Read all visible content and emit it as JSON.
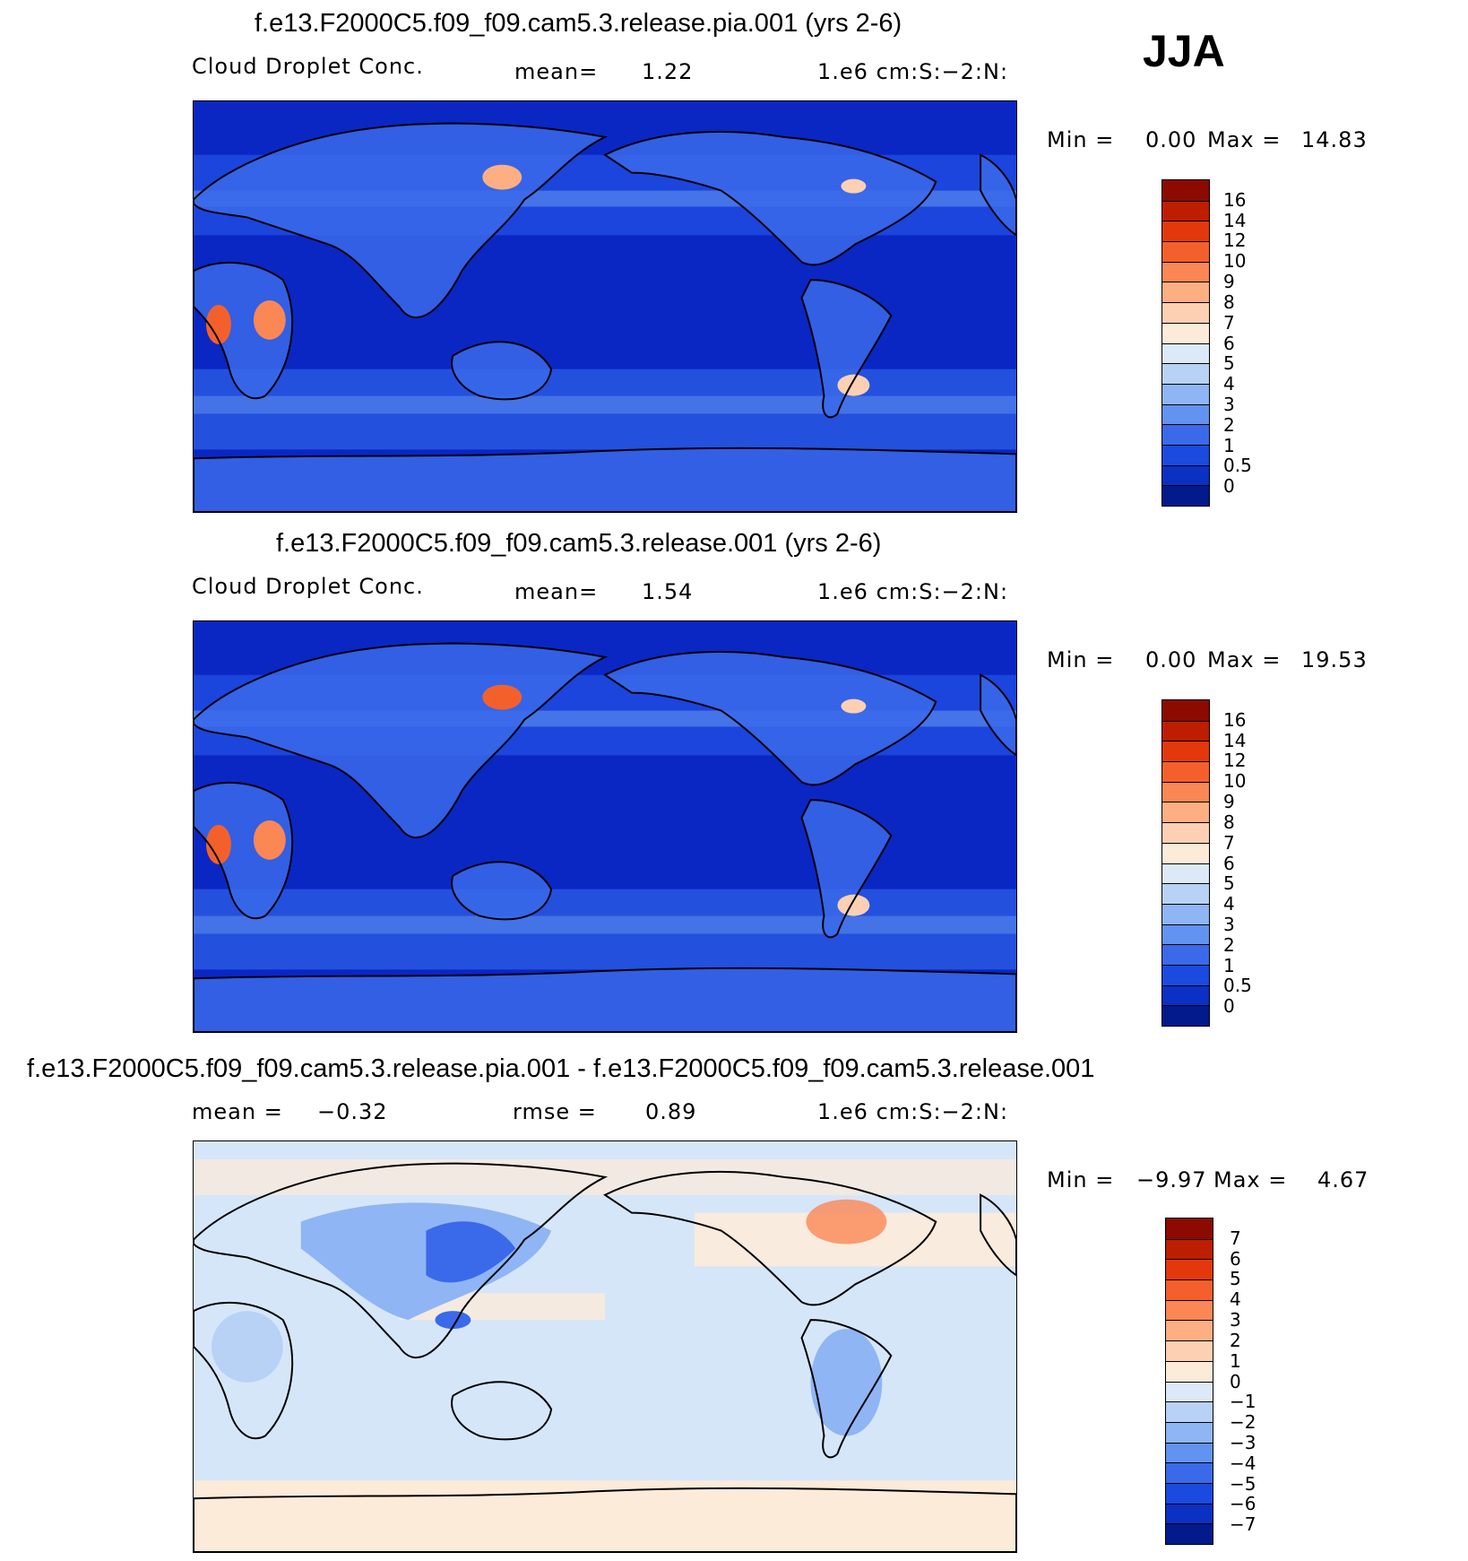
{
  "season": "JJA",
  "panels": [
    {
      "title": "f.e13.F2000C5.f09_f09.cam5.3.release.pia.001 (yrs 2-6)",
      "variable": "Cloud Droplet Conc.",
      "stat_label": "mean=",
      "stat_value": "1.22",
      "units": "1.e6 cm:S:−2:N:",
      "min_label": "Min =",
      "min_value": "0.00",
      "max_label": "Max =",
      "max_value": "14.83",
      "levels": [
        "16",
        "14",
        "12",
        "10",
        "9",
        "8",
        "7",
        "6",
        "5",
        "4",
        "3",
        "2",
        "1",
        "0.5",
        "0"
      ],
      "colors": [
        "#8c0a00",
        "#bd1e00",
        "#e3380b",
        "#f4602b",
        "#fb8755",
        "#fdaf83",
        "#fdd0b3",
        "#fdebd9",
        "#dce9f8",
        "#b8d2f6",
        "#8fb5f5",
        "#6393f0",
        "#3a6aea",
        "#1a4ae0",
        "#0a30c4",
        "#021a8c"
      ],
      "bg_color": "#0a27c4"
    },
    {
      "title": "f.e13.F2000C5.f09_f09.cam5.3.release.001 (yrs 2-6)",
      "variable": "Cloud Droplet Conc.",
      "stat_label": "mean=",
      "stat_value": "1.54",
      "units": "1.e6 cm:S:−2:N:",
      "min_label": "Min =",
      "min_value": "0.00",
      "max_label": "Max =",
      "max_value": "19.53",
      "levels": [
        "16",
        "14",
        "12",
        "10",
        "9",
        "8",
        "7",
        "6",
        "5",
        "4",
        "3",
        "2",
        "1",
        "0.5",
        "0"
      ],
      "colors": [
        "#8c0a00",
        "#bd1e00",
        "#e3380b",
        "#f4602b",
        "#fb8755",
        "#fdaf83",
        "#fdd0b3",
        "#fdebd9",
        "#dce9f8",
        "#b8d2f6",
        "#8fb5f5",
        "#6393f0",
        "#3a6aea",
        "#1a4ae0",
        "#0a30c4",
        "#021a8c"
      ],
      "bg_color": "#0a27c4"
    },
    {
      "title": "f.e13.F2000C5.f09_f09.cam5.3.release.pia.001 - f.e13.F2000C5.f09_f09.cam5.3.release.001",
      "stat_label": "mean =",
      "stat_value": "−0.32",
      "stat2_label": "rmse =",
      "stat2_value": "0.89",
      "units": "1.e6 cm:S:−2:N:",
      "min_label": "Min =",
      "min_value": "−9.97",
      "max_label": "Max =",
      "max_value": "4.67",
      "levels": [
        "7",
        "6",
        "5",
        "4",
        "3",
        "2",
        "1",
        "0",
        "−1",
        "−2",
        "−3",
        "−4",
        "−5",
        "−6",
        "−7"
      ],
      "colors": [
        "#8c0a00",
        "#bd1e00",
        "#e3380b",
        "#f4602b",
        "#fb8755",
        "#fdaf83",
        "#fdd0b3",
        "#fdebd9",
        "#dce9f8",
        "#b8d2f6",
        "#8fb5f5",
        "#6393f0",
        "#3a6aea",
        "#1a4ae0",
        "#0a30c4",
        "#021a8c"
      ],
      "bg_color": "#d6e6f9"
    }
  ]
}
